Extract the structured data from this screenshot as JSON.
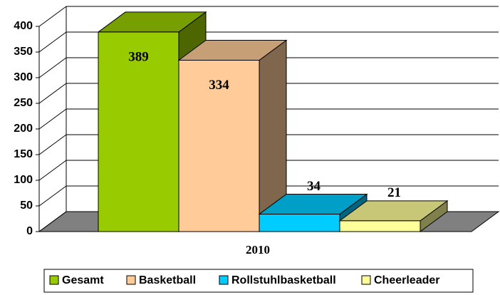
{
  "chart_data": {
    "type": "bar3d",
    "categories": [
      "2010"
    ],
    "series": [
      {
        "name": "Gesamt",
        "color": "#99cc00",
        "values": [
          389
        ]
      },
      {
        "name": "Basketball",
        "color": "#ffcc99",
        "values": [
          334
        ]
      },
      {
        "name": "Rollstuhlbasketball",
        "color": "#00ccff",
        "values": [
          34
        ]
      },
      {
        "name": "Cheerleader",
        "color": "#ffff99",
        "values": [
          21
        ]
      }
    ],
    "ylim": [
      0,
      400
    ],
    "yticks": [
      0,
      50,
      100,
      150,
      200,
      250,
      300,
      350,
      400
    ],
    "grid": true,
    "legend": "bottom"
  }
}
